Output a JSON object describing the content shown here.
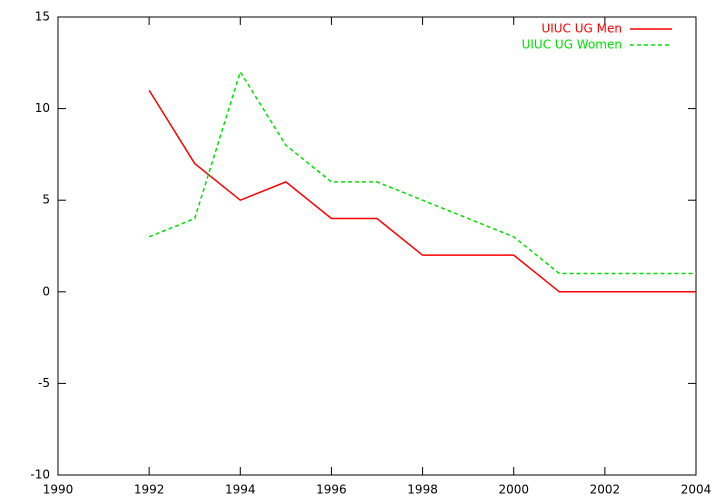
{
  "chart_data": {
    "type": "line",
    "x": [
      1992,
      1993,
      1994,
      1995,
      1996,
      1997,
      1998,
      1999,
      2000,
      2001,
      2002,
      2003,
      2004
    ],
    "series": [
      {
        "name": "UIUC UG Men",
        "color": "#ff0000",
        "style": "solid",
        "values": [
          11,
          7,
          5,
          6,
          4,
          4,
          2,
          2,
          2,
          0,
          0,
          0,
          0
        ]
      },
      {
        "name": "UIUC UG Women",
        "color": "#00e000",
        "style": "dashed",
        "values": [
          3,
          4,
          12,
          8,
          6,
          6,
          5,
          4,
          3,
          1,
          1,
          1,
          1
        ]
      }
    ],
    "xlim": [
      1990,
      2004
    ],
    "xticks": [
      1990,
      1992,
      1994,
      1996,
      1998,
      2000,
      2002,
      2004
    ],
    "ylim": [
      -10,
      15
    ],
    "yticks": [
      -10,
      -5,
      0,
      5,
      10,
      15
    ],
    "grid": false,
    "legend": "top-right"
  }
}
